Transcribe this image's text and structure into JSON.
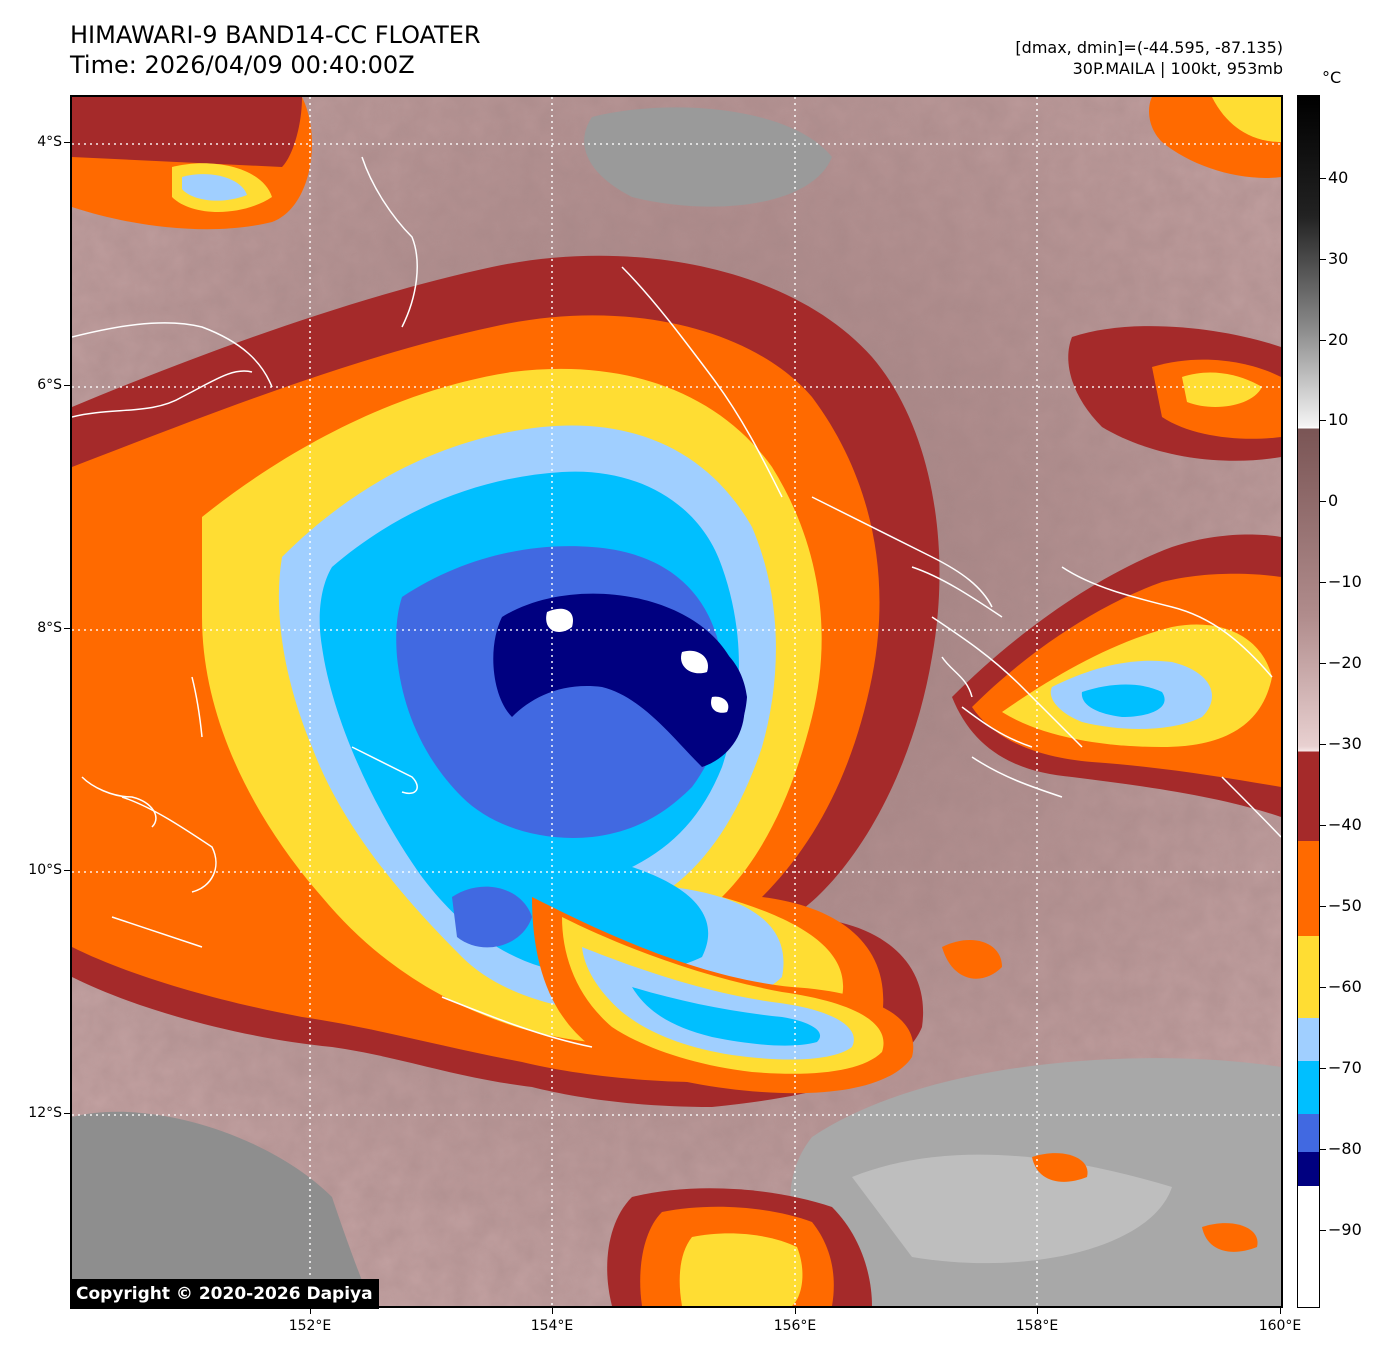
{
  "header": {
    "title": "HIMAWARI-9 BAND14-CC FLOATER",
    "time": "Time: 2026/04/09 00:40:00Z",
    "dmax_dmin": "[dmax, dmin]=(-44.595, -87.135)",
    "storm": "30P.MAILA | 100kt, 953mb"
  },
  "map": {
    "lat_labels": [
      "4°S",
      "6°S",
      "8°S",
      "10°S",
      "12°S"
    ],
    "lon_labels": [
      "152°E",
      "154°E",
      "156°E",
      "158°E",
      "160°E"
    ],
    "lat_values": [
      -4,
      -6,
      -8,
      -10,
      -12
    ],
    "lon_values": [
      152,
      154,
      156,
      158,
      160
    ],
    "lat_range": [
      -13.6,
      -3.6
    ],
    "lon_range": [
      150.0,
      160.0
    ],
    "gridlines": true,
    "coastline_color": "#ffffff"
  },
  "colorbar": {
    "unit": "°C",
    "labels": [
      "40",
      "30",
      "20",
      "10",
      "0",
      "−10",
      "−20",
      "−30",
      "−40",
      "−50",
      "−60",
      "−70",
      "−80",
      "−90"
    ],
    "values": [
      40,
      30,
      20,
      10,
      0,
      -10,
      -20,
      -30,
      -40,
      -50,
      -60,
      -70,
      -80,
      -90
    ],
    "range": [
      -100,
      50
    ],
    "colors": {
      "below_-85": "#000080",
      "-85_-80": "#4169e1",
      "-80_-75": "#00bfff",
      "-75_-70": "#a0cfff",
      "-70_-60": "#ffdd33",
      "-60_-50": "#ff6a00",
      "-50_-40": "#a52a2a",
      "gray_scale": [
        "#ffffff",
        "#000000"
      ]
    }
  },
  "footer": {
    "copyright": "Copyright © 2020-2026 Dapiya"
  }
}
